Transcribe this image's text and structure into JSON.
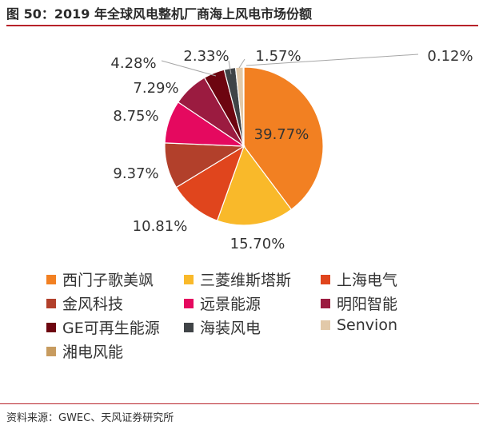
{
  "figure": {
    "title": "图 50：2019 年全球风电整机厂商海上风电市场份额",
    "source": "资料来源：GWEC、天风证券研究所"
  },
  "chart_data": {
    "type": "pie",
    "title": "图 50：2019 年全球风电整机厂商海上风电市场份额",
    "slices": [
      {
        "name": "西门子歌美飒",
        "value": 39.77,
        "label": "39.77%",
        "color": "#f28022"
      },
      {
        "name": "三菱维斯塔斯",
        "value": 15.7,
        "label": "15.70%",
        "color": "#f9b92a"
      },
      {
        "name": "上海电气",
        "value": 10.81,
        "label": "10.81%",
        "color": "#e0451d"
      },
      {
        "name": "金风科技",
        "value": 9.37,
        "label": "9.37%",
        "color": "#b2402b"
      },
      {
        "name": "远景能源",
        "value": 8.75,
        "label": "8.75%",
        "color": "#e5095f"
      },
      {
        "name": "明阳智能",
        "value": 7.29,
        "label": "7.29%",
        "color": "#9b1b40"
      },
      {
        "name": "GE可再生能源",
        "value": 4.28,
        "label": "4.28%",
        "color": "#6d0510"
      },
      {
        "name": "海装风电",
        "value": 2.33,
        "label": "2.33%",
        "color": "#404447"
      },
      {
        "name": "Senvion",
        "value": 1.57,
        "label": "1.57%",
        "color": "#e2c9a9"
      },
      {
        "name": "湘电风能",
        "value": 0.12,
        "label": "0.12%",
        "color": "#c79b5f"
      }
    ],
    "legend_position": "bottom"
  }
}
